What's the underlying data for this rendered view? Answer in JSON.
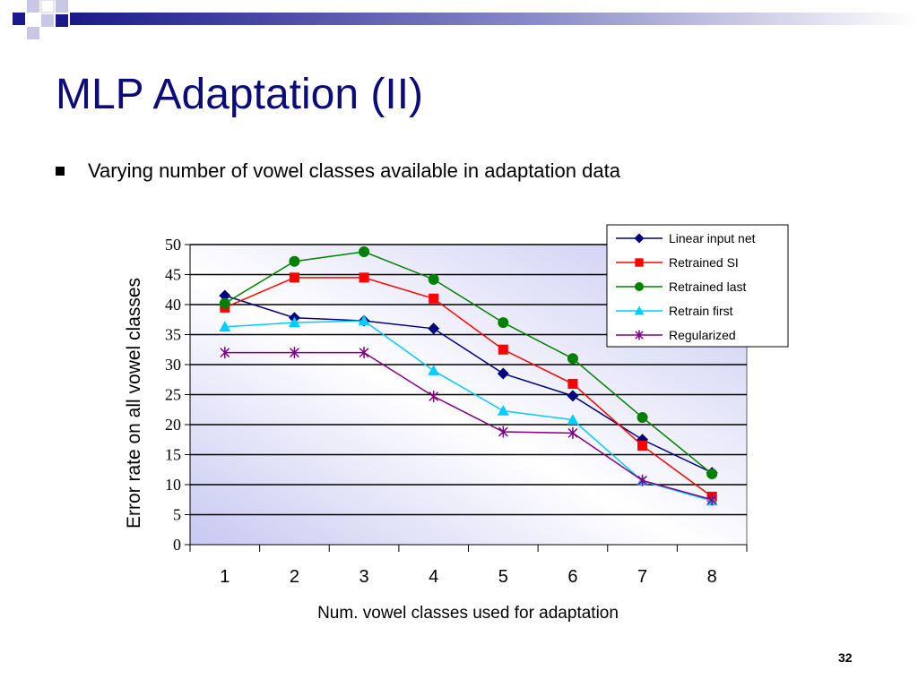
{
  "slide": {
    "title": "MLP Adaptation (II)",
    "bullet": "Varying number of vowel classes available in adaptation data",
    "page_number": "32"
  },
  "chart_data": {
    "type": "line",
    "title": "",
    "xlabel": "Num. vowel classes used for adaptation",
    "ylabel": "Error rate on all vowel classes",
    "categories": [
      "1",
      "2",
      "3",
      "4",
      "5",
      "6",
      "7",
      "8"
    ],
    "yticks": [
      "0",
      "5",
      "10",
      "15",
      "20",
      "25",
      "30",
      "35",
      "40",
      "45",
      "50"
    ],
    "ylim": [
      0,
      50
    ],
    "grid": true,
    "legend_position": "top-right",
    "series": [
      {
        "name": "Linear input net",
        "color": "#000080",
        "marker": "diamond",
        "values": [
          41.5,
          37.8,
          37.3,
          36,
          28.5,
          24.8,
          17.5,
          12
        ]
      },
      {
        "name": "Retrained SI",
        "color": "#ff0000",
        "marker": "square",
        "values": [
          39.5,
          44.5,
          44.5,
          41,
          32.5,
          26.8,
          16.5,
          8
        ]
      },
      {
        "name": "Retrained last",
        "color": "#008000",
        "marker": "circle",
        "values": [
          40.2,
          47.2,
          48.8,
          44.2,
          37,
          31,
          21.2,
          11.8
        ]
      },
      {
        "name": "Retrain first",
        "color": "#00ccff",
        "marker": "triangle",
        "values": [
          36.3,
          37,
          37.3,
          29,
          22.3,
          20.8,
          10.6,
          7.3
        ]
      },
      {
        "name": "Regularized",
        "color": "#800080",
        "marker": "star",
        "values": [
          32,
          32,
          32,
          24.7,
          18.8,
          18.6,
          10.7,
          7.5
        ]
      }
    ]
  }
}
